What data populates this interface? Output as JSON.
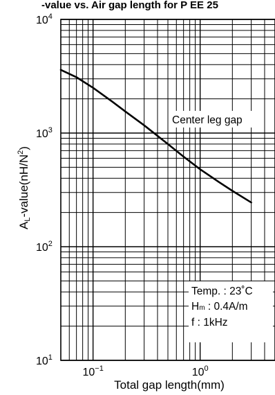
{
  "chart_data": {
    "type": "line",
    "title": "-value vs. Air gap length for P EE 25",
    "xlabel": "Total gap length(mm)",
    "ylabel": {
      "main": "A",
      "sub": "L",
      "rest": "-value(nH/N",
      "sup": "2",
      "close": ")"
    },
    "x_scale": "log",
    "y_scale": "log",
    "xlim": [
      0.05,
      5
    ],
    "ylim": [
      10,
      10000
    ],
    "grid": true,
    "x_major_ticks": [
      {
        "value": 0.1,
        "base": "10",
        "exp": "−1"
      },
      {
        "value": 1,
        "base": "10",
        "exp": "0"
      }
    ],
    "y_major_ticks": [
      {
        "value": 10,
        "base": "10",
        "exp": "1"
      },
      {
        "value": 100,
        "base": "10",
        "exp": "2"
      },
      {
        "value": 1000,
        "base": "10",
        "exp": "3"
      },
      {
        "value": 10000,
        "base": "10",
        "exp": "4"
      }
    ],
    "series": [
      {
        "label": "Center leg gap",
        "color": "#000000",
        "x": [
          0.05,
          0.07,
          0.1,
          0.15,
          0.2,
          0.3,
          0.5,
          0.7,
          1.0,
          1.5,
          2.0,
          3.0
        ],
        "y": [
          3600,
          3100,
          2500,
          1900,
          1550,
          1170,
          800,
          620,
          480,
          370,
          310,
          245
        ]
      }
    ],
    "conditions": {
      "line1": "Temp. : 23˚C",
      "line2_main": "H",
      "line2_sub": "m",
      "line2_rest": " : 0.4A/m",
      "line3": "f : 1kHz"
    }
  }
}
